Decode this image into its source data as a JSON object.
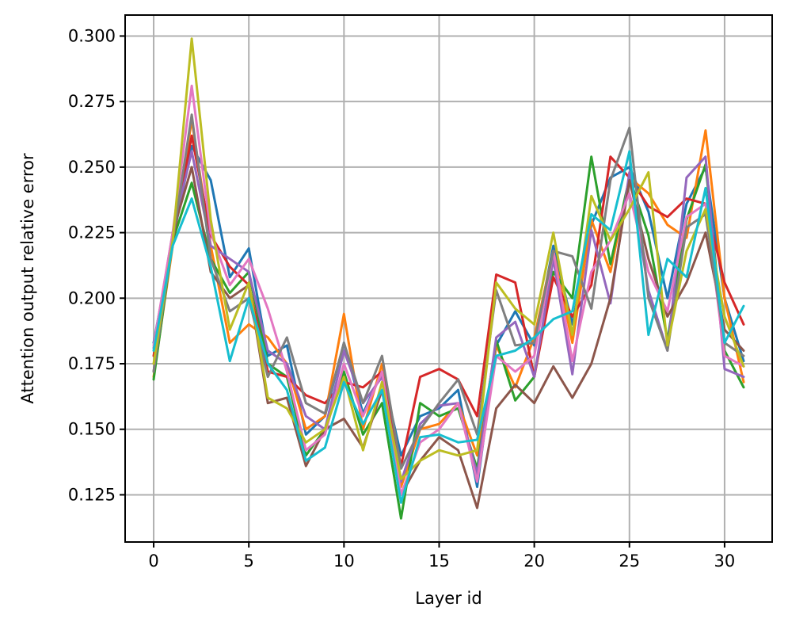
{
  "chart_data": {
    "type": "line",
    "xlabel": "Layer id",
    "ylabel": "Attention output relative error",
    "xlim": [
      -1.5,
      32.5
    ],
    "ylim": [
      0.107,
      0.308
    ],
    "xticks": [
      0,
      5,
      10,
      15,
      20,
      25,
      30
    ],
    "yticks": [
      0.125,
      0.15,
      0.175,
      0.2,
      0.225,
      0.25,
      0.275,
      0.3
    ],
    "ytick_labels": [
      "0.125",
      "0.150",
      "0.175",
      "0.200",
      "0.225",
      "0.250",
      "0.275",
      "0.300"
    ],
    "grid": true,
    "x": [
      0,
      1,
      2,
      3,
      4,
      5,
      6,
      7,
      8,
      9,
      10,
      11,
      12,
      13,
      14,
      15,
      16,
      17,
      18,
      19,
      20,
      21,
      22,
      23,
      24,
      25,
      26,
      27,
      28,
      29,
      30,
      31
    ],
    "series": [
      {
        "color": "#1f77b4",
        "values": [
          0.183,
          0.222,
          0.258,
          0.245,
          0.208,
          0.219,
          0.178,
          0.182,
          0.148,
          0.155,
          0.183,
          0.156,
          0.172,
          0.14,
          0.155,
          0.158,
          0.165,
          0.128,
          0.182,
          0.195,
          0.182,
          0.22,
          0.19,
          0.228,
          0.246,
          0.25,
          0.233,
          0.2,
          0.236,
          0.25,
          0.2,
          0.176
        ]
      },
      {
        "color": "#ff7f0e",
        "values": [
          0.17,
          0.22,
          0.268,
          0.22,
          0.183,
          0.19,
          0.185,
          0.175,
          0.15,
          0.155,
          0.194,
          0.15,
          0.175,
          0.128,
          0.15,
          0.152,
          0.16,
          0.14,
          0.182,
          0.166,
          0.185,
          0.218,
          0.183,
          0.23,
          0.21,
          0.246,
          0.24,
          0.228,
          0.223,
          0.264,
          0.2,
          0.168
        ]
      },
      {
        "color": "#2ca02c",
        "values": [
          0.169,
          0.222,
          0.244,
          0.215,
          0.202,
          0.21,
          0.175,
          0.17,
          0.14,
          0.15,
          0.172,
          0.148,
          0.16,
          0.116,
          0.16,
          0.155,
          0.158,
          0.135,
          0.184,
          0.161,
          0.17,
          0.21,
          0.2,
          0.254,
          0.213,
          0.246,
          0.224,
          0.184,
          0.23,
          0.251,
          0.18,
          0.166
        ]
      },
      {
        "color": "#d62728",
        "values": [
          0.178,
          0.222,
          0.262,
          0.224,
          0.212,
          0.205,
          0.172,
          0.17,
          0.163,
          0.16,
          0.168,
          0.166,
          0.172,
          0.136,
          0.17,
          0.173,
          0.169,
          0.155,
          0.209,
          0.206,
          0.17,
          0.208,
          0.193,
          0.205,
          0.254,
          0.246,
          0.235,
          0.231,
          0.238,
          0.236,
          0.206,
          0.19
        ]
      },
      {
        "color": "#9467bd",
        "values": [
          0.181,
          0.225,
          0.256,
          0.22,
          0.215,
          0.21,
          0.18,
          0.175,
          0.155,
          0.15,
          0.18,
          0.16,
          0.17,
          0.13,
          0.152,
          0.159,
          0.16,
          0.133,
          0.185,
          0.191,
          0.17,
          0.215,
          0.171,
          0.226,
          0.198,
          0.248,
          0.203,
          0.18,
          0.246,
          0.254,
          0.173,
          0.17
        ]
      },
      {
        "color": "#8c564b",
        "values": [
          0.172,
          0.225,
          0.25,
          0.21,
          0.2,
          0.205,
          0.16,
          0.162,
          0.136,
          0.15,
          0.154,
          0.143,
          0.165,
          0.125,
          0.138,
          0.147,
          0.142,
          0.12,
          0.158,
          0.167,
          0.16,
          0.174,
          0.162,
          0.175,
          0.2,
          0.245,
          0.215,
          0.193,
          0.206,
          0.225,
          0.188,
          0.18
        ]
      },
      {
        "color": "#e377c2",
        "values": [
          0.182,
          0.225,
          0.281,
          0.225,
          0.205,
          0.215,
          0.196,
          0.172,
          0.142,
          0.148,
          0.175,
          0.155,
          0.172,
          0.125,
          0.145,
          0.15,
          0.16,
          0.13,
          0.178,
          0.172,
          0.178,
          0.218,
          0.176,
          0.21,
          0.222,
          0.24,
          0.21,
          0.195,
          0.231,
          0.236,
          0.178,
          0.174
        ]
      },
      {
        "color": "#7f7f7f",
        "values": [
          0.172,
          0.222,
          0.27,
          0.215,
          0.195,
          0.2,
          0.17,
          0.185,
          0.16,
          0.156,
          0.183,
          0.16,
          0.178,
          0.135,
          0.15,
          0.16,
          0.169,
          0.148,
          0.203,
          0.182,
          0.183,
          0.218,
          0.216,
          0.196,
          0.245,
          0.265,
          0.2,
          0.18,
          0.227,
          0.232,
          0.183,
          0.178
        ]
      },
      {
        "color": "#bcbd22",
        "values": [
          0.175,
          0.222,
          0.299,
          0.23,
          0.188,
          0.206,
          0.162,
          0.158,
          0.145,
          0.15,
          0.17,
          0.142,
          0.168,
          0.131,
          0.138,
          0.142,
          0.14,
          0.142,
          0.206,
          0.196,
          0.19,
          0.225,
          0.186,
          0.239,
          0.222,
          0.234,
          0.248,
          0.182,
          0.218,
          0.234,
          0.193,
          0.174
        ]
      },
      {
        "color": "#17becf",
        "values": [
          0.18,
          0.22,
          0.238,
          0.212,
          0.176,
          0.2,
          0.175,
          0.165,
          0.138,
          0.143,
          0.168,
          0.152,
          0.165,
          0.122,
          0.147,
          0.148,
          0.145,
          0.146,
          0.178,
          0.18,
          0.185,
          0.192,
          0.195,
          0.232,
          0.226,
          0.256,
          0.186,
          0.215,
          0.208,
          0.242,
          0.183,
          0.197
        ]
      }
    ]
  }
}
